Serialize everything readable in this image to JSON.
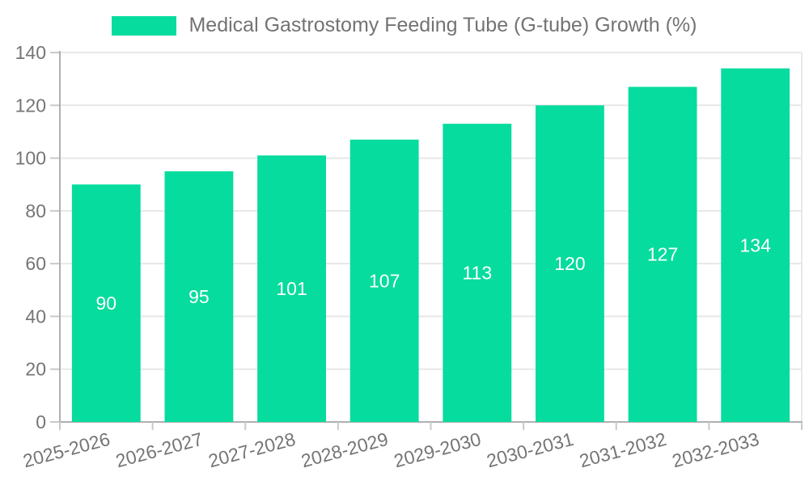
{
  "legend": {
    "label": "Medical Gastrostomy Feeding Tube (G-tube) Growth (%)"
  },
  "chart_data": {
    "type": "bar",
    "title": "Medical Gastrostomy Feeding Tube (G-tube) Growth (%)",
    "series_name": "Medical Gastrostomy Feeding Tube (G-tube) Growth (%)",
    "categories": [
      "2025-2026",
      "2026-2027",
      "2027-2028",
      "2028-2029",
      "2029-2030",
      "2030-2031",
      "2031-2032",
      "2032-2033"
    ],
    "values": [
      90,
      95,
      101,
      107,
      113,
      120,
      127,
      134
    ],
    "xlabel": "",
    "ylabel": "",
    "ylim": [
      0,
      140
    ],
    "yticks": [
      0,
      20,
      40,
      60,
      80,
      100,
      120,
      140
    ],
    "grid": true,
    "legend_position": "top",
    "x_label_rotation_deg": -15,
    "colors": {
      "bar": "#06dc9d",
      "value_label": "#ffffff",
      "axis_text": "#757575",
      "axis_line": "#b0b0b0",
      "grid_line": "#e8e8e8",
      "tick_line": "#c9c9c9"
    }
  }
}
